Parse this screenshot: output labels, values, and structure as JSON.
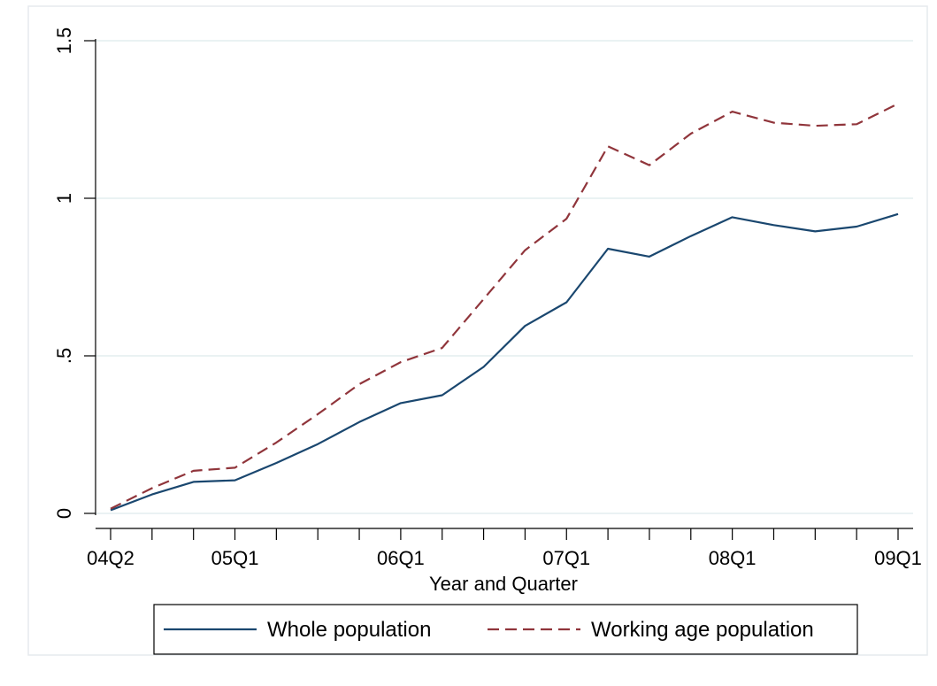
{
  "chart_data": {
    "type": "line",
    "xlabel": "Year and Quarter",
    "ylabel": "",
    "ylim": [
      0,
      1.5
    ],
    "x": [
      "04Q2",
      "04Q3",
      "04Q4",
      "05Q1",
      "05Q2",
      "05Q3",
      "05Q4",
      "06Q1",
      "06Q2",
      "06Q3",
      "06Q4",
      "07Q1",
      "07Q2",
      "07Q3",
      "07Q4",
      "08Q1",
      "08Q2",
      "08Q3",
      "08Q4",
      "09Q1"
    ],
    "x_tick_labels": [
      "04Q2",
      "05Q1",
      "06Q1",
      "07Q1",
      "08Q1",
      "09Q1"
    ],
    "y_ticks": [
      0,
      0.5,
      1,
      1.5
    ],
    "y_tick_labels": [
      "0",
      ".5",
      "1",
      "1.5"
    ],
    "grid": true,
    "legend_position": "bottom",
    "series": [
      {
        "name": "Whole population",
        "color": "#1a476f",
        "dash": "solid",
        "values": [
          0.01,
          0.06,
          0.1,
          0.105,
          0.16,
          0.22,
          0.29,
          0.35,
          0.375,
          0.465,
          0.595,
          0.67,
          0.84,
          0.815,
          0.88,
          0.94,
          0.915,
          0.895,
          0.91,
          0.95
        ]
      },
      {
        "name": "Working age population",
        "color": "#90353b",
        "dash": "dashed",
        "values": [
          0.015,
          0.08,
          0.135,
          0.145,
          0.225,
          0.315,
          0.41,
          0.48,
          0.525,
          0.68,
          0.835,
          0.935,
          1.165,
          1.105,
          1.205,
          1.275,
          1.24,
          1.23,
          1.235,
          1.3
        ]
      }
    ]
  }
}
